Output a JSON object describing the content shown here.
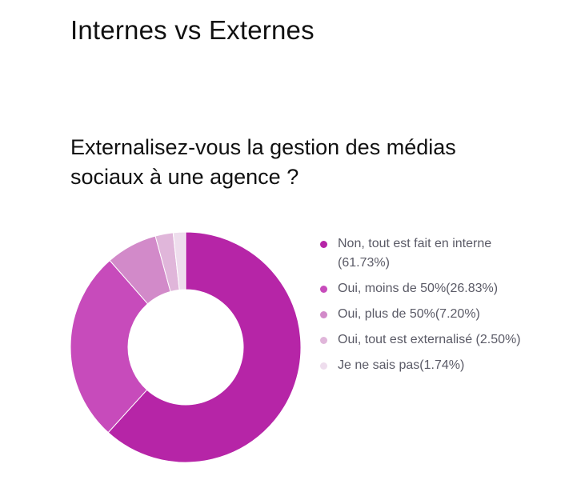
{
  "page": {
    "title": "Internes vs Externes"
  },
  "chart_data": {
    "type": "pie",
    "donut": true,
    "title": "Externalisez-vous la gestion des médias sociaux à une agence ?",
    "legend_position": "right",
    "slices": [
      {
        "label": "Non, tout est fait en interne (61.73%)",
        "value": 61.73,
        "color": "#b625a7"
      },
      {
        "label": "Oui, moins de 50%(26.83%)",
        "value": 26.83,
        "color": "#c74bbb"
      },
      {
        "label": "Oui, plus de 50%(7.20%)",
        "value": 7.2,
        "color": "#d28ac9"
      },
      {
        "label": "Oui, tout est externalisé (2.50%)",
        "value": 2.5,
        "color": "#e0b6da"
      },
      {
        "label": "Je ne sais pas(1.74%)",
        "value": 1.74,
        "color": "#eedded"
      }
    ]
  }
}
